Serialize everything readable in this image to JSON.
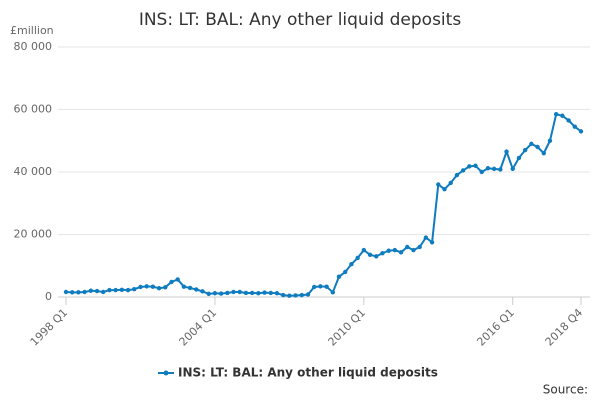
{
  "chart_data": {
    "type": "line",
    "title": "INS: LT: BAL: Any other liquid deposits",
    "y_unit": "£million",
    "source": "Source:",
    "categories": [
      "1998 Q1",
      null,
      null,
      null,
      null,
      null,
      null,
      null,
      null,
      null,
      null,
      null,
      null,
      null,
      null,
      null,
      null,
      null,
      null,
      null,
      null,
      null,
      null,
      null,
      "2004 Q1",
      null,
      null,
      null,
      null,
      null,
      null,
      null,
      null,
      null,
      null,
      null,
      null,
      null,
      null,
      null,
      null,
      null,
      null,
      null,
      null,
      null,
      null,
      null,
      "2010 Q1",
      null,
      null,
      null,
      null,
      null,
      null,
      null,
      null,
      null,
      null,
      null,
      null,
      null,
      null,
      null,
      null,
      null,
      null,
      null,
      null,
      null,
      null,
      null,
      "2016 Q1",
      null,
      null,
      null,
      null,
      null,
      null,
      null,
      null,
      null,
      null,
      "2018 Q4"
    ],
    "series": [
      {
        "name": "INS: LT: BAL: Any other liquid deposits",
        "color": "#0f7cbf",
        "values": [
          1600,
          1500,
          1500,
          1600,
          2000,
          1900,
          1600,
          2200,
          2200,
          2300,
          2200,
          2500,
          3200,
          3400,
          3300,
          2800,
          3100,
          4800,
          5600,
          3300,
          2900,
          2400,
          1800,
          1000,
          1200,
          1100,
          1300,
          1600,
          1600,
          1300,
          1300,
          1200,
          1400,
          1300,
          1200,
          600,
          400,
          500,
          600,
          800,
          3200,
          3400,
          3300,
          1500,
          6500,
          8000,
          10500,
          12500,
          15000,
          13500,
          13000,
          14000,
          14800,
          15000,
          14300,
          16000,
          15000,
          16000,
          19000,
          17500,
          36000,
          34500,
          36500,
          39000,
          40500,
          41800,
          42000,
          40000,
          41200,
          41000,
          40800,
          46500,
          41000,
          44500,
          47000,
          49000,
          48000,
          46000,
          50000,
          58500,
          58000,
          56500,
          54500,
          53000
        ]
      }
    ],
    "ylim": [
      0,
      80000
    ],
    "yticks": [
      0,
      {
        "value": 20000,
        "label": "20 000"
      },
      {
        "value": 40000,
        "label": "40 000"
      },
      {
        "value": 60000,
        "label": "60 000"
      },
      {
        "value": 80000,
        "label": "80 000"
      }
    ],
    "grid": true
  }
}
